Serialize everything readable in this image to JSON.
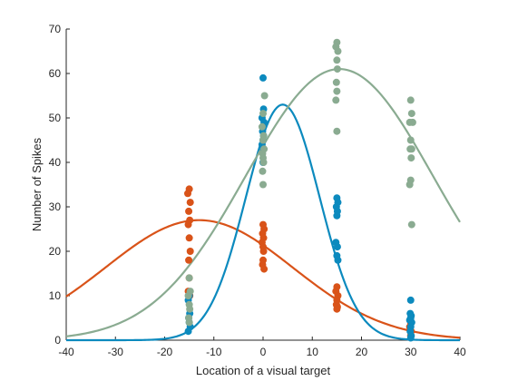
{
  "chart_data": {
    "type": "scatter",
    "xlabel": "Location of a visual target",
    "ylabel": "Number of Spikes",
    "xlim": [
      -40,
      40
    ],
    "ylim": [
      0,
      70
    ],
    "xticks": [
      -40,
      -30,
      -20,
      -10,
      0,
      10,
      20,
      30,
      40
    ],
    "yticks": [
      0,
      10,
      20,
      30,
      40,
      50,
      60,
      70
    ],
    "grid": false,
    "legend": "none",
    "series": [
      {
        "color": "#d95319",
        "points": [
          [
            -15,
            34
          ],
          [
            -15.3,
            33
          ],
          [
            -14.8,
            31
          ],
          [
            -15.1,
            29
          ],
          [
            -14.9,
            27
          ],
          [
            -15.2,
            26
          ],
          [
            -15,
            23
          ],
          [
            -14.8,
            20
          ],
          [
            -15.1,
            18
          ],
          [
            -15,
            14
          ],
          [
            -15.2,
            11
          ],
          [
            -14.9,
            10
          ],
          [
            0,
            26
          ],
          [
            0.2,
            25
          ],
          [
            -0.1,
            24
          ],
          [
            0.1,
            23
          ],
          [
            -0.2,
            22
          ],
          [
            0,
            21
          ],
          [
            0.1,
            20
          ],
          [
            0,
            18
          ],
          [
            -0.1,
            17
          ],
          [
            0.2,
            16
          ],
          [
            15,
            12
          ],
          [
            14.8,
            11
          ],
          [
            15.2,
            10
          ],
          [
            15,
            9
          ],
          [
            14.9,
            8
          ],
          [
            15.1,
            7.5
          ],
          [
            15,
            7
          ],
          [
            30,
            4
          ],
          [
            29.8,
            3
          ],
          [
            30.1,
            2
          ],
          [
            30,
            1
          ]
        ],
        "fit": {
          "amplitude": 27,
          "mean": -13,
          "sd": 19
        }
      },
      {
        "color": "#0c8abe",
        "points": [
          [
            -15,
            10
          ],
          [
            -15.2,
            9
          ],
          [
            -14.9,
            6
          ],
          [
            -15.1,
            5
          ],
          [
            -15,
            4
          ],
          [
            -14.8,
            3
          ],
          [
            -15.2,
            2
          ],
          [
            0,
            59
          ],
          [
            0.1,
            52
          ],
          [
            -0.2,
            50
          ],
          [
            0.2,
            49
          ],
          [
            0,
            48
          ],
          [
            -0.1,
            47
          ],
          [
            0.1,
            46
          ],
          [
            0,
            45
          ],
          [
            -0.2,
            44
          ],
          [
            0.1,
            43
          ],
          [
            0,
            40
          ],
          [
            15,
            32
          ],
          [
            15.2,
            31
          ],
          [
            14.9,
            30
          ],
          [
            15.1,
            29
          ],
          [
            15,
            28
          ],
          [
            14.8,
            22
          ],
          [
            15.1,
            21
          ],
          [
            15,
            19
          ],
          [
            15.2,
            18
          ],
          [
            30,
            9
          ],
          [
            29.9,
            6
          ],
          [
            30.1,
            5.5
          ],
          [
            30,
            5
          ],
          [
            29.8,
            4.5
          ],
          [
            30.2,
            4
          ],
          [
            30,
            3
          ],
          [
            29.9,
            2
          ],
          [
            30.1,
            1
          ],
          [
            30,
            0.5
          ]
        ],
        "fit": {
          "amplitude": 53,
          "mean": 4,
          "sd": 7.5
        }
      },
      {
        "color": "#8aab91",
        "points": [
          [
            -15,
            14
          ],
          [
            -14.8,
            11
          ],
          [
            -15.2,
            10
          ],
          [
            -15,
            8
          ],
          [
            -14.9,
            7
          ],
          [
            -15.1,
            5
          ],
          [
            -15,
            4
          ],
          [
            0.3,
            55
          ],
          [
            0,
            51
          ],
          [
            -0.2,
            48
          ],
          [
            0.1,
            46
          ],
          [
            0,
            45
          ],
          [
            0.2,
            43
          ],
          [
            -0.1,
            42
          ],
          [
            0,
            41
          ],
          [
            0.1,
            40
          ],
          [
            -0.1,
            38
          ],
          [
            0,
            35
          ],
          [
            15,
            67
          ],
          [
            14.8,
            66
          ],
          [
            15.2,
            65
          ],
          [
            15,
            63
          ],
          [
            15.1,
            61
          ],
          [
            14.9,
            58
          ],
          [
            15,
            56
          ],
          [
            14.8,
            54
          ],
          [
            15,
            47
          ],
          [
            30,
            54
          ],
          [
            30.2,
            51
          ],
          [
            29.8,
            49
          ],
          [
            30.4,
            49
          ],
          [
            30,
            45
          ],
          [
            30.2,
            43
          ],
          [
            29.9,
            43
          ],
          [
            30.1,
            41
          ],
          [
            30,
            36
          ],
          [
            29.8,
            35
          ],
          [
            30.2,
            26
          ]
        ],
        "fit": {
          "amplitude": 61,
          "mean": 15.5,
          "sd": 19
        }
      }
    ]
  }
}
